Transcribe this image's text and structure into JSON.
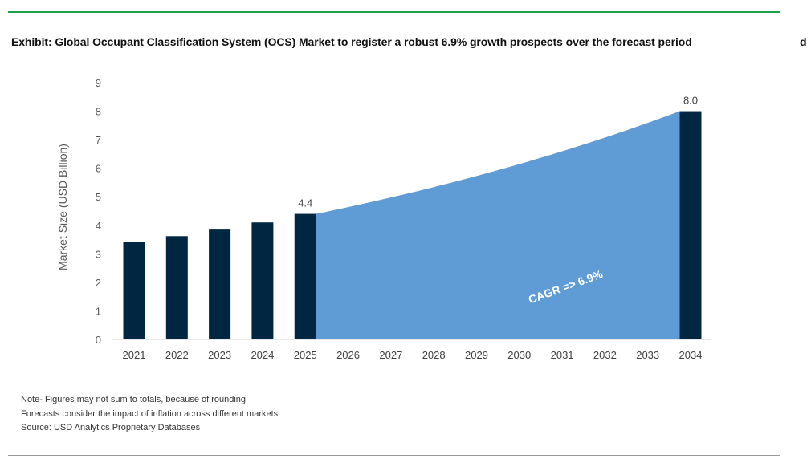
{
  "title": "Exhibit: Global Occupant Classification System (OCS) Market to register a robust 6.9% growth prospects over the forecast period",
  "title_overflow": "d",
  "notes": [
    "Note- Figures may not sum to totals, because of rounding",
    "Forecasts consider the impact of inflation across different markets",
    "Source: USD Analytics Proprietary Databases"
  ],
  "colors": {
    "bar": "#002642",
    "area": "#5f9bd5",
    "accent_rule": "#1aa14a"
  },
  "chart_data": {
    "type": "bar",
    "categories": [
      "2021",
      "2022",
      "2023",
      "2024",
      "2025",
      "2026",
      "2027",
      "2028",
      "2029",
      "2030",
      "2031",
      "2032",
      "2033",
      "2034"
    ],
    "bars": {
      "2021": 3.43,
      "2022": 3.62,
      "2023": 3.85,
      "2024": 4.1,
      "2025": 4.4,
      "2034": 8.0
    },
    "data_labels": {
      "2025": "4.4",
      "2034": "8.0"
    },
    "forecast_area": {
      "from": "2025",
      "to": "2034",
      "start": 4.4,
      "end": 8.0,
      "cagr": 6.9
    },
    "annotation": "CAGR => 6.9%",
    "ylabel": "Market Size (USD Billion)",
    "xlabel": "",
    "ylim": [
      0,
      9
    ],
    "yticks": [
      0,
      1,
      2,
      3,
      4,
      5,
      6,
      7,
      8,
      9
    ],
    "grid": false,
    "legend": "none"
  }
}
